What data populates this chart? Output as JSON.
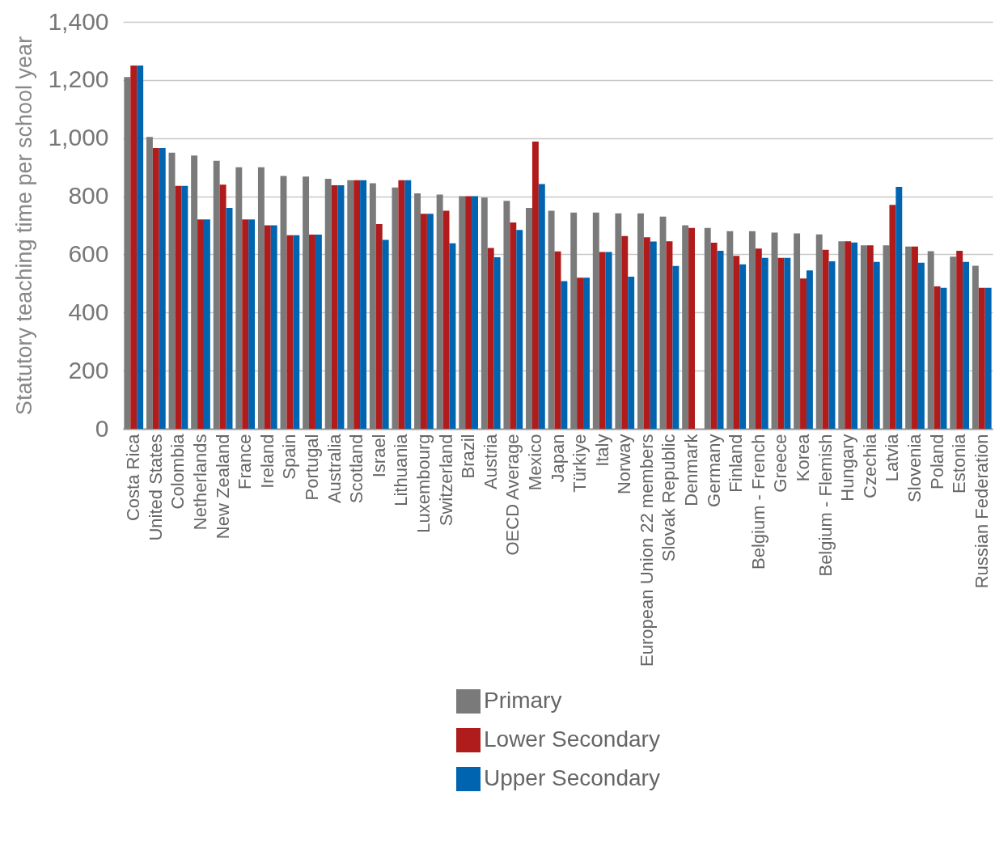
{
  "chart_data": {
    "type": "bar",
    "ylabel": "Statutory teaching time per school year",
    "categories": [
      "Costa Rica",
      "United States",
      "Colombia",
      "Netherlands",
      "New Zealand",
      "France",
      "Ireland",
      "Spain",
      "Portugal",
      "Australia",
      "Scotland",
      "Israel",
      "Lithuania",
      "Luxembourg",
      "Switzerland",
      "Brazil",
      "Austria",
      "OECD Average",
      "Mexico",
      "Japan",
      "Türkiye",
      "Italy",
      "Norway",
      "European Union 22 members",
      "Slovak Republic",
      "Denmark",
      "Germany",
      "Finland",
      "Belgium - French",
      "Greece",
      "Korea",
      "Belgium - Flemish",
      "Hungary",
      "Czechia",
      "Latvia",
      "Slovenia",
      "Poland",
      "Estonia",
      "Russian Federation"
    ],
    "series": [
      {
        "name": "Primary",
        "color": "#7a7a7a",
        "values": [
          1210,
          1004,
          950,
          940,
          922,
          900,
          900,
          870,
          868,
          860,
          855,
          845,
          830,
          810,
          806,
          800,
          795,
          784,
          760,
          750,
          744,
          744,
          741,
          741,
          730,
          700,
          691,
          680,
          680,
          675,
          672,
          669,
          645,
          631,
          631,
          627,
          611,
          592,
          561
        ]
      },
      {
        "name": "Lower Secondary",
        "color": "#b01c1c",
        "values": [
          1250,
          966,
          836,
          720,
          840,
          720,
          700,
          666,
          668,
          838,
          855,
          704,
          855,
          740,
          750,
          800,
          622,
          710,
          988,
          610,
          520,
          608,
          663,
          659,
          645,
          691,
          640,
          595,
          620,
          588,
          517,
          616,
          645,
          631,
          770,
          627,
          490,
          612,
          485
        ]
      },
      {
        "name": "Upper Secondary",
        "color": "#0064b0",
        "values": [
          1250,
          966,
          836,
          720,
          760,
          720,
          700,
          666,
          668,
          838,
          855,
          650,
          855,
          740,
          638,
          800,
          590,
          684,
          842,
          508,
          520,
          608,
          523,
          644,
          560,
          null,
          612,
          566,
          588,
          588,
          545,
          576,
          641,
          574,
          832,
          571,
          485,
          574,
          485
        ]
      }
    ],
    "ylim": [
      0,
      1400
    ],
    "yticks": [
      {
        "value": 0,
        "label": "0"
      },
      {
        "value": 200,
        "label": "200"
      },
      {
        "value": 400,
        "label": "400"
      },
      {
        "value": 600,
        "label": "600"
      },
      {
        "value": 800,
        "label": "800"
      },
      {
        "value": 1000,
        "label": "1,000"
      },
      {
        "value": 1200,
        "label": "1,200"
      },
      {
        "value": 1400,
        "label": "1,400"
      }
    ],
    "grid": "y",
    "legend": "bottom"
  }
}
